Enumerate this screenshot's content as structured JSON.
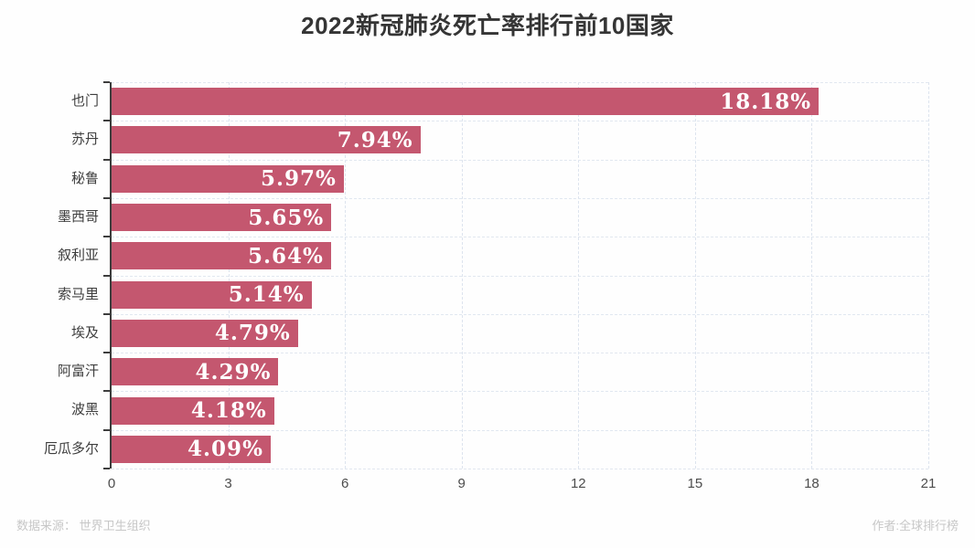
{
  "title": "2022新冠肺炎死亡率排行前10国家",
  "footer": {
    "source": "数据来源： 世界卫生组织",
    "author": "作者:全球排行榜"
  },
  "chart_data": {
    "type": "bar",
    "orientation": "horizontal",
    "title": "2022新冠肺炎死亡率排行前10国家",
    "categories": [
      "也门",
      "苏丹",
      "秘鲁",
      "墨西哥",
      "叙利亚",
      "索马里",
      "埃及",
      "阿富汗",
      "波黑",
      "厄瓜多尔"
    ],
    "values": [
      18.18,
      7.94,
      5.97,
      5.65,
      5.64,
      5.14,
      4.79,
      4.29,
      4.18,
      4.09
    ],
    "value_labels": [
      "18.18%",
      "7.94%",
      "5.97%",
      "5.65%",
      "5.64%",
      "5.14%",
      "4.79%",
      "4.29%",
      "4.18%",
      "4.09%"
    ],
    "xlabel": "",
    "ylabel": "",
    "x_ticks": [
      0,
      3,
      6,
      9,
      12,
      15,
      18,
      21
    ],
    "xlim": [
      0,
      21
    ],
    "grid": "dashed",
    "legend": "none",
    "bar_color": "#c4576f",
    "value_label_color": "#ffffff",
    "value_label_position": "inside-end"
  }
}
